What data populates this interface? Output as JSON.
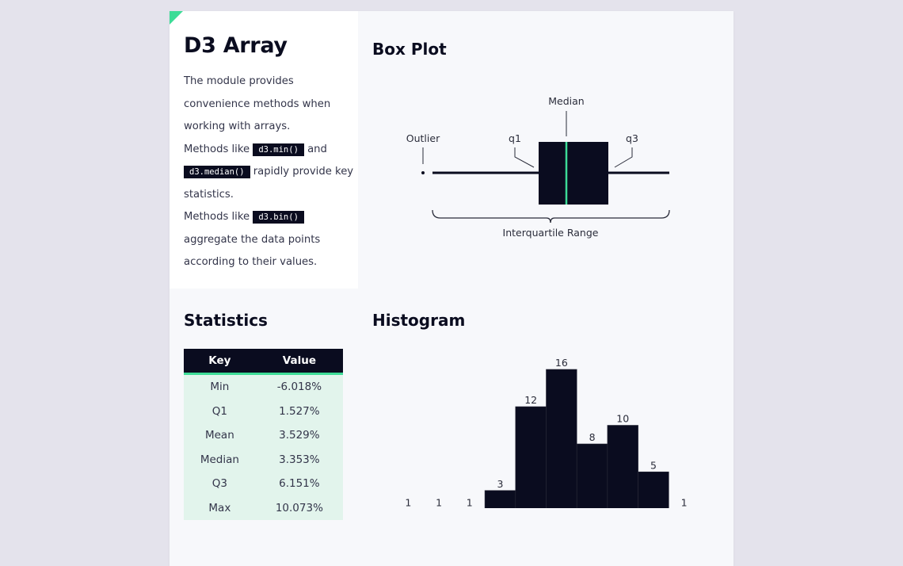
{
  "intro": {
    "title": "D3 Array",
    "line1": "The module provides convenience methods when working with arrays.",
    "line2_pre": "Methods like ",
    "code_min": "d3.min()",
    "line2_and": " and ",
    "code_median": "d3.median()",
    "line2_post": " rapidly provide key statistics.",
    "line3_pre": "Methods like ",
    "code_bin": "d3.bin()",
    "line3_post": " aggregate the data points according to their values."
  },
  "boxplot": {
    "title": "Box Plot",
    "labels": {
      "median": "Median",
      "outlier": "Outlier",
      "q1": "q1",
      "q3": "q3",
      "iqr": "Interquartile Range"
    }
  },
  "statistics": {
    "title": "Statistics",
    "headers": [
      "Key",
      "Value"
    ],
    "rows": [
      [
        "Min",
        "-6.018%"
      ],
      [
        "Q1",
        "1.527%"
      ],
      [
        "Mean",
        "3.529%"
      ],
      [
        "Median",
        "3.353%"
      ],
      [
        "Q3",
        "6.151%"
      ],
      [
        "Max",
        "10.073%"
      ]
    ]
  },
  "histogram": {
    "title": "Histogram"
  },
  "chart_data": {
    "type": "bar",
    "title": "Histogram",
    "values": [
      1,
      1,
      1,
      3,
      12,
      16,
      8,
      10,
      5,
      1
    ],
    "data_labels": true,
    "bar_color": "#0a0c1f"
  },
  "colors": {
    "accent": "#3ddc97",
    "dark": "#0a0c1f",
    "table_row": "#e2f4ec"
  }
}
